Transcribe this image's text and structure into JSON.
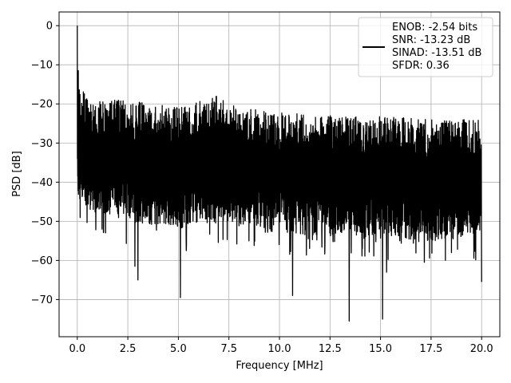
{
  "chart_data": {
    "type": "line",
    "title": "",
    "xlabel": "Frequency [MHz]",
    "ylabel": "PSD [dB]",
    "xlim": [
      -0.9,
      20.9
    ],
    "ylim": [
      -79.5,
      3.5
    ],
    "xticks": [
      0.0,
      2.5,
      5.0,
      7.5,
      10.0,
      12.5,
      15.0,
      17.5,
      20.0
    ],
    "xtick_labels": [
      "0.0",
      "2.5",
      "5.0",
      "7.5",
      "10.0",
      "12.5",
      "15.0",
      "17.5",
      "20.0"
    ],
    "yticks": [
      0,
      -10,
      -20,
      -30,
      -40,
      -50,
      -60,
      -70
    ],
    "ytick_labels": [
      "0",
      "−10",
      "−20",
      "−30",
      "−40",
      "−50",
      "−60",
      "−70"
    ],
    "grid": true,
    "legend_position": "top-right",
    "series": [
      {
        "name": "ENOB: -2.54 bits\nSNR: -13.23 dB\nSINAD: -13.51 dB\nSFDR: 0.36",
        "color": "#000000",
        "description_values": {
          "x_range": [
            0.0,
            20.0
          ],
          "peak": [
            0.0,
            0.0
          ],
          "upper_envelope": [
            [
              0.0,
              -34
            ],
            [
              0.05,
              -9
            ],
            [
              0.15,
              -15
            ],
            [
              0.5,
              -19
            ],
            [
              2.5,
              -19
            ],
            [
              5.0,
              -21
            ],
            [
              6.9,
              -18
            ],
            [
              8.0,
              -21
            ],
            [
              10.0,
              -22
            ],
            [
              12.5,
              -23
            ],
            [
              15.0,
              -23
            ],
            [
              17.5,
              -24
            ],
            [
              20.0,
              -24
            ]
          ],
          "lower_envelope": [
            [
              0.0,
              -46
            ],
            [
              2.5,
              -50
            ],
            [
              5.0,
              -52
            ],
            [
              7.5,
              -50
            ],
            [
              10.0,
              -53
            ],
            [
              12.5,
              -54
            ],
            [
              15.0,
              -54
            ],
            [
              17.5,
              -55
            ],
            [
              20.0,
              -54
            ]
          ],
          "deep_dips": [
            [
              2.85,
              -61.5
            ],
            [
              3.0,
              -65
            ],
            [
              5.1,
              -69.5
            ],
            [
              10.65,
              -69
            ],
            [
              13.45,
              -75.5
            ],
            [
              15.1,
              -75
            ],
            [
              15.3,
              -63
            ],
            [
              20.0,
              -65.5
            ]
          ]
        }
      }
    ]
  }
}
